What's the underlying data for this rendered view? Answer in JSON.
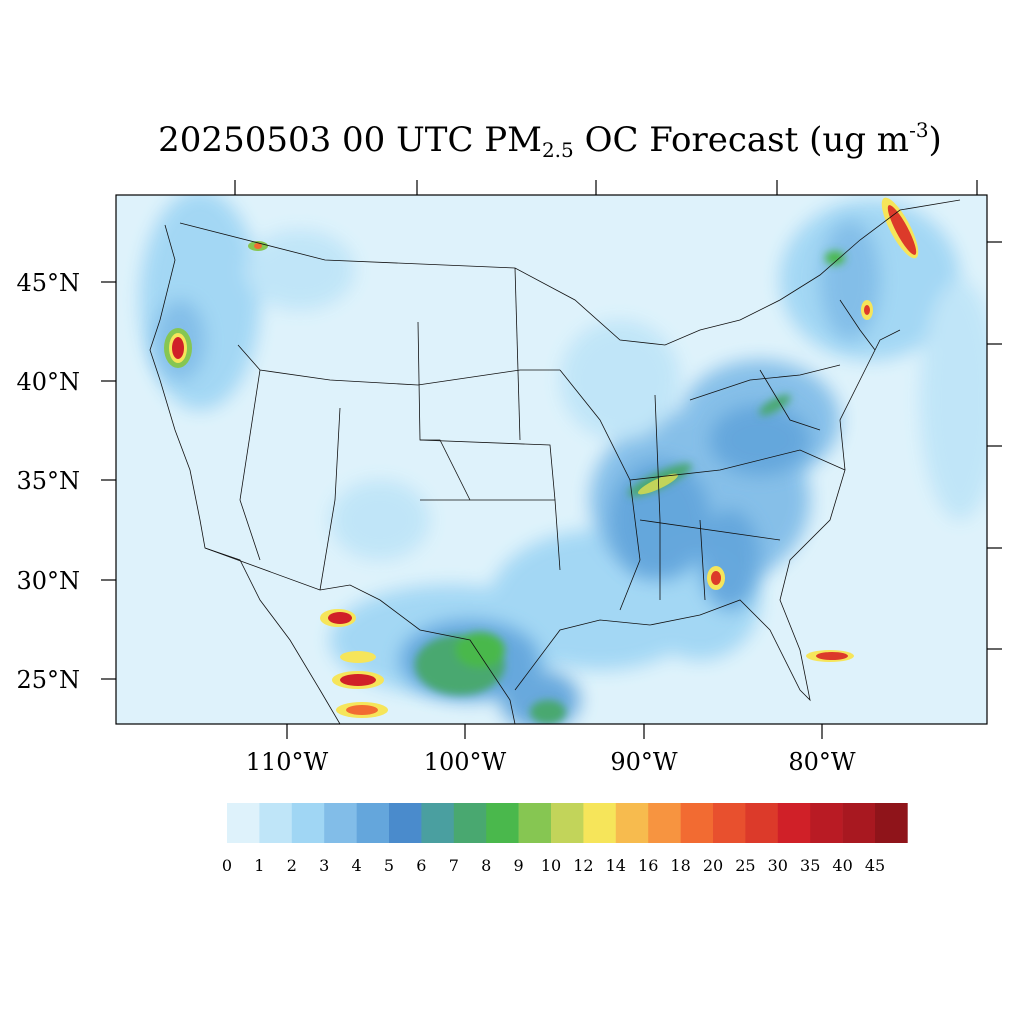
{
  "title": {
    "pre": "20250503 00 UTC PM",
    "sub": "2.5",
    "mid": " OC Forecast (ug m",
    "sup": "-3",
    "post": ")"
  },
  "lat_labels": [
    "45°N",
    "40°N",
    "35°N",
    "30°N",
    "25°N"
  ],
  "lon_labels": [
    "110°W",
    "100°W",
    "90°W",
    "80°W"
  ],
  "colorbar": {
    "colors": [
      "#def2fb",
      "#bfe5f8",
      "#a0d6f4",
      "#82bde8",
      "#64a6dc",
      "#4a8bcc",
      "#4a9fa0",
      "#49a870",
      "#4ab84c",
      "#86c652",
      "#c2d45a",
      "#f6e55a",
      "#f7bb4e",
      "#f79440",
      "#f26b32",
      "#e8502e",
      "#dc3a2a",
      "#d02028",
      "#b91b24",
      "#a81820",
      "#8f141a"
    ],
    "labels": [
      "0",
      "1",
      "2",
      "3",
      "4",
      "5",
      "6",
      "7",
      "8",
      "9",
      "10",
      "12",
      "14",
      "16",
      "18",
      "20",
      "25",
      "30",
      "35",
      "40",
      "45"
    ]
  },
  "hotspots": [
    {
      "name": "hotspot-oregon",
      "lon": -123.3,
      "lat": 42.0,
      "level": 18
    },
    {
      "name": "hotspot-quebec",
      "lon": -71.9,
      "lat": 47.5,
      "level": 18
    },
    {
      "name": "hotspot-mexico-north",
      "lon": -107.0,
      "lat": 28.0,
      "level": 17
    },
    {
      "name": "hotspot-mexico-mid",
      "lon": -107.2,
      "lat": 25.2,
      "level": 17
    },
    {
      "name": "hotspot-mexico-south",
      "lon": -106.8,
      "lat": 23.4,
      "level": 13
    },
    {
      "name": "hotspot-cuba",
      "lon": -79.5,
      "lat": 22.6,
      "level": 16
    },
    {
      "name": "hotspot-georgia",
      "lon": -84.8,
      "lat": 30.6,
      "level": 14
    },
    {
      "name": "hotspot-kentucky",
      "lon": -86.8,
      "lat": 36.5,
      "level": 11
    },
    {
      "name": "hotspot-idaho",
      "lon": -117.5,
      "lat": 47.6,
      "level": 10
    },
    {
      "name": "hotspot-vermont",
      "lon": -73.4,
      "lat": 44.5,
      "level": 12
    }
  ]
}
